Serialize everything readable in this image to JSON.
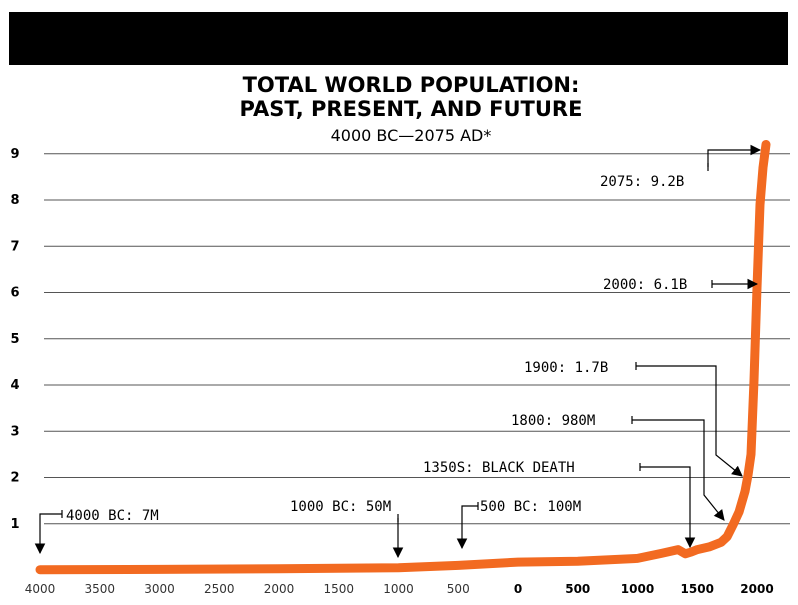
{
  "chart_data": {
    "type": "line",
    "title_lines": [
      "TOTAL WORLD POPULATION:",
      "PAST, PRESENT, AND FUTURE"
    ],
    "subtitle": "4000 BC—2075 AD*",
    "xlabel": "",
    "ylabel": "",
    "xlim": [
      -4000,
      2075
    ],
    "ylim": [
      0,
      9.2
    ],
    "grid": true,
    "line_color": "#f26a21",
    "x_ticks": [
      {
        "value": -4000,
        "label": "4000"
      },
      {
        "value": -3500,
        "label": "3500"
      },
      {
        "value": -3000,
        "label": "3000"
      },
      {
        "value": -2500,
        "label": "2500"
      },
      {
        "value": -2000,
        "label": "2000"
      },
      {
        "value": -1500,
        "label": "1500"
      },
      {
        "value": -1000,
        "label": "1000"
      },
      {
        "value": -500,
        "label": "500"
      },
      {
        "value": 0,
        "label": "0"
      },
      {
        "value": 500,
        "label": "500"
      },
      {
        "value": 1000,
        "label": "1000"
      },
      {
        "value": 1500,
        "label": "1500"
      },
      {
        "value": 2000,
        "label": "2000"
      }
    ],
    "y_ticks": [
      1,
      2,
      3,
      4,
      5,
      6,
      7,
      8,
      9
    ],
    "series": [
      {
        "x": [
          -4000,
          -3000,
          -2000,
          -1000,
          -500,
          0,
          500,
          1000,
          1200,
          1340,
          1400,
          1450,
          1500,
          1600,
          1700,
          1750,
          1800,
          1850,
          1900,
          1925,
          1950,
          1975,
          2000,
          2025,
          2050,
          2075
        ],
        "values": [
          0.007,
          0.014,
          0.027,
          0.05,
          0.1,
          0.17,
          0.19,
          0.25,
          0.36,
          0.44,
          0.35,
          0.39,
          0.44,
          0.5,
          0.6,
          0.72,
          0.98,
          1.26,
          1.7,
          2.05,
          2.5,
          4.1,
          6.1,
          7.9,
          8.7,
          9.2
        ]
      }
    ],
    "annotations": [
      {
        "label": "2075: 9.2B",
        "x": 2075,
        "y": 9.2
      },
      {
        "label": "2000: 6.1B",
        "x": 2000,
        "y": 6.1
      },
      {
        "label": "1900: 1.7B",
        "x": 1900,
        "y": 1.7
      },
      {
        "label": "1800: 980M",
        "x": 1800,
        "y": 0.98
      },
      {
        "label": "1350S: BLACK DEATH",
        "x": 1350,
        "y": 0.44
      },
      {
        "label": "4000 BC: 7M",
        "x": -4000,
        "y": 0.007
      },
      {
        "label": "1000 BC: 50M",
        "x": -1000,
        "y": 0.05
      },
      {
        "label": "500 BC: 100M",
        "x": -500,
        "y": 0.1
      }
    ]
  }
}
